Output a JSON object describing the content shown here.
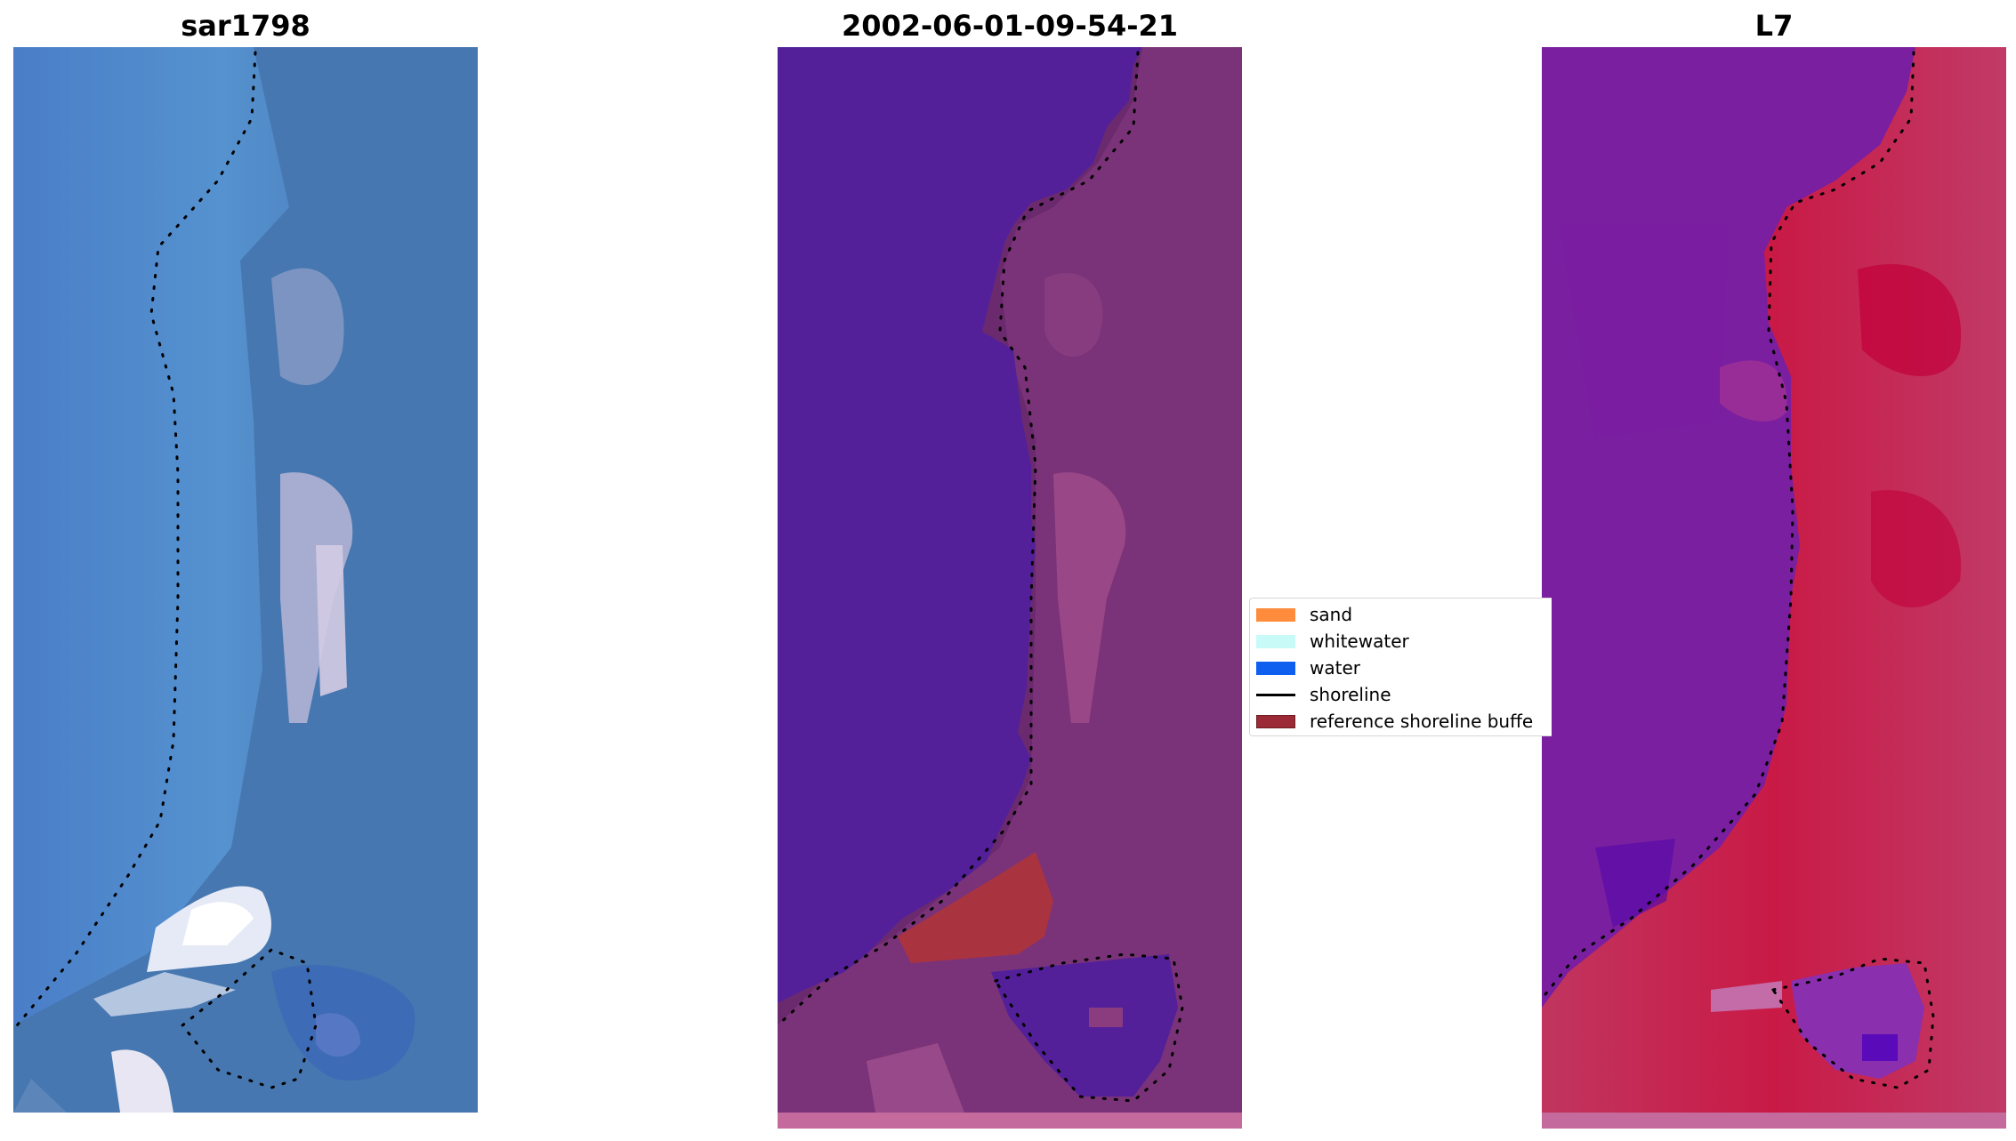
{
  "panels": [
    {
      "title": "sar1798"
    },
    {
      "title": "2002-06-01-09-54-21"
    },
    {
      "title": "L7"
    }
  ],
  "legend": {
    "items": [
      {
        "label": "sand",
        "color": "#ff8c3c"
      },
      {
        "label": "whitewater",
        "color": "#c8fbf8"
      },
      {
        "label": "water",
        "color": "#0e5ef0"
      },
      {
        "label": "shoreline",
        "color": "#000000"
      },
      {
        "label": "reference shoreline buffe",
        "color": "#9c2a36"
      }
    ]
  }
}
